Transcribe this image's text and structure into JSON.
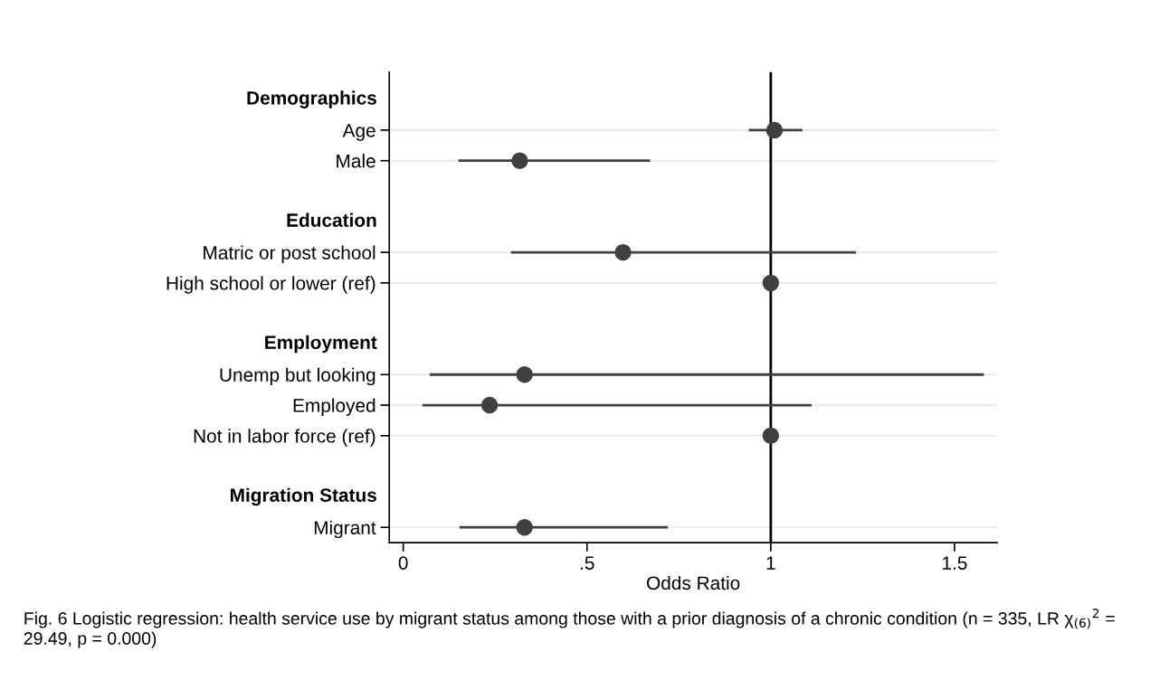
{
  "chart_data": {
    "type": "scatter",
    "categories": [
      "Demographics",
      "Age",
      "Male",
      null,
      "Education",
      "Matric or post school",
      "High school or lower (ref)",
      null,
      "Employment",
      "Unemp but looking",
      "Employed",
      "Not in labor force (ref)",
      null,
      "Migration Status",
      "Migrant"
    ],
    "orientation": "horizontal",
    "series": [
      {
        "color": "#404040",
        "values": [
          null,
          1.01,
          0.317,
          null,
          null,
          0.598,
          1,
          null,
          null,
          0.33,
          0.235,
          1,
          null,
          null,
          0.33
        ],
        "errors": [
          null,
          [
            0.94,
            1.086
          ],
          [
            0.15,
            0.672
          ],
          null,
          null,
          [
            0.293,
            1.232
          ],
          null,
          null,
          null,
          [
            0.072,
            1.58
          ],
          [
            0.052,
            1.111
          ],
          null,
          null,
          null,
          [
            0.153,
            0.72
          ]
        ]
      }
    ],
    "xlim": [
      -0.038,
      1.616
    ],
    "xticks": [
      0,
      {
        "value": 0.5,
        "label": ".5"
      },
      1,
      1.5
    ],
    "xlabel": "Odds Ratio",
    "ref_lines": [
      {
        "axis": "x",
        "value": 1,
        "color": "#000000"
      }
    ],
    "grid": "y",
    "marker": "circle",
    "annotations": [
      "Fig. 6 Logistic regression: health service use by migrant status among those with a prior diagnosis of a chronic condition (n = 335, LR χ$_{(6)}$$^{2}$ = 29.49, p = 0.000)"
    ]
  }
}
